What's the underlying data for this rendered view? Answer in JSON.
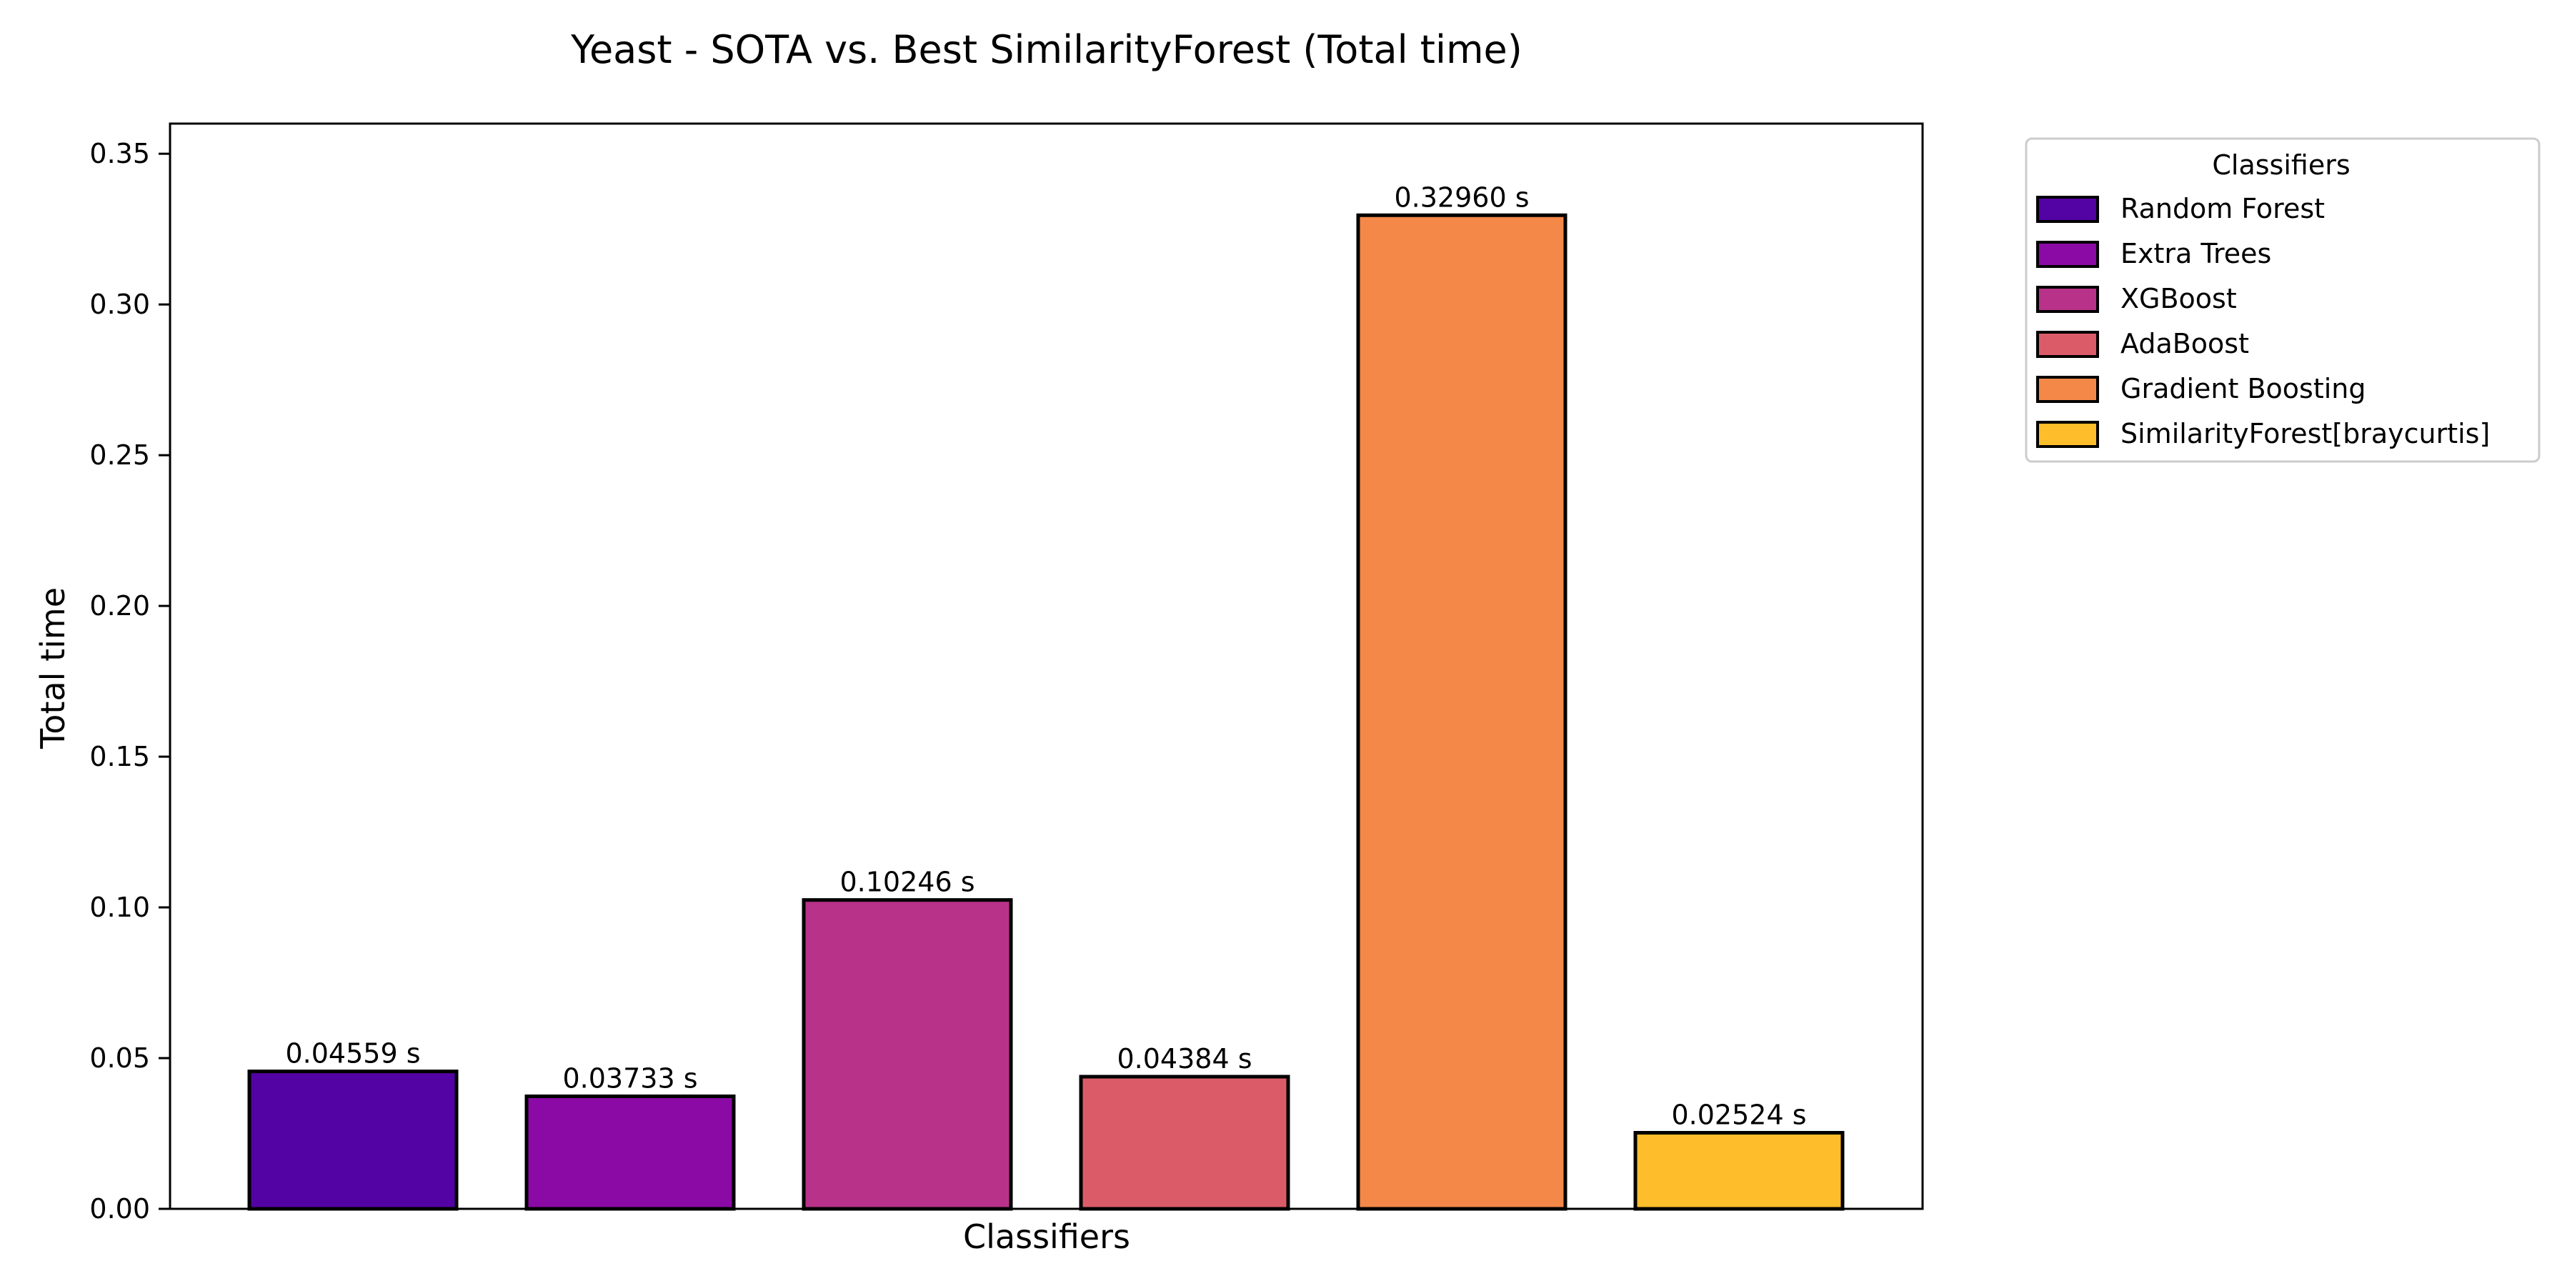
{
  "chart_data": {
    "type": "bar",
    "title": "Yeast - SOTA vs. Best SimilarityForest (Total time)",
    "xlabel": "Classifiers",
    "ylabel": "Total time",
    "ylim": [
      0,
      0.36
    ],
    "yticks": [
      "0.00",
      "0.05",
      "0.10",
      "0.15",
      "0.20",
      "0.25",
      "0.30",
      "0.35"
    ],
    "grid": false,
    "legend": {
      "title": "Classifiers",
      "placement": "outside-top-right"
    },
    "categories": [
      "Random Forest",
      "Extra Trees",
      "XGBoost",
      "AdaBoost",
      "Gradient Boosting",
      "SimilarityForest[braycurtis]"
    ],
    "values": [
      0.04559,
      0.03733,
      0.10246,
      0.04384,
      0.3296,
      0.02524
    ],
    "data_labels": [
      "0.04559 s",
      "0.03733 s",
      "0.10246 s",
      "0.04384 s",
      "0.32960 s",
      "0.02524 s"
    ],
    "colors": [
      "#5302a3",
      "#8b0aa5",
      "#b83289",
      "#db5c68",
      "#f48849",
      "#febd2a"
    ]
  }
}
